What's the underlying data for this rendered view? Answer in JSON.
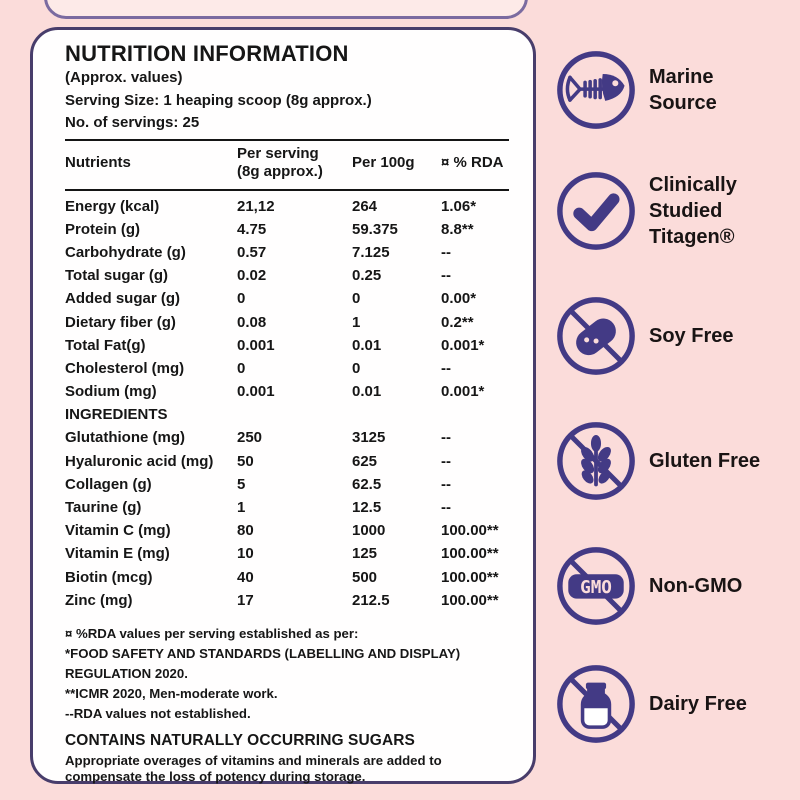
{
  "colors": {
    "background_pink": "#FBDCDA",
    "card_border_purple": "#483D6B",
    "icon_purple": "#433A85",
    "text_black": "#161616"
  },
  "label": {
    "title": "NUTRITION INFORMATION",
    "subtitle": "(Approx. values)",
    "serving_size": "Serving Size: 1 heaping scoop (8g approx.)",
    "servings": "No. of servings: 25",
    "table": {
      "col_nutrients": "Nutrients",
      "col_per_serving_line1": "Per serving",
      "col_per_serving_line2": "(8g approx.)",
      "col_per_100g": "Per 100g",
      "col_rda": "¤ % RDA",
      "rows": [
        {
          "name": "Energy (kcal)",
          "serving": "21,12",
          "per100": "264",
          "rda": "1.06*"
        },
        {
          "name": "Protein (g)",
          "serving": "4.75",
          "per100": "59.375",
          "rda": "8.8**"
        },
        {
          "name": "Carbohydrate (g)",
          "serving": "0.57",
          "per100": "7.125",
          "rda": "--"
        },
        {
          "name": "Total sugar (g)",
          "serving": "0.02",
          "per100": "0.25",
          "rda": "--"
        },
        {
          "name": "Added sugar (g)",
          "serving": "0",
          "per100": "0",
          "rda": "0.00*"
        },
        {
          "name": "Dietary fiber (g)",
          "serving": "0.08",
          "per100": "1",
          "rda": "0.2**"
        },
        {
          "name": "Total Fat(g)",
          "serving": "0.001",
          "per100": "0.01",
          "rda": "0.001*"
        },
        {
          "name": "Cholesterol (mg)",
          "serving": "0",
          "per100": "0",
          "rda": "--"
        },
        {
          "name": "Sodium (mg)",
          "serving": "0.001",
          "per100": "0.01",
          "rda": "0.001*"
        },
        {
          "section": "INGREDIENTS"
        },
        {
          "name": "Glutathione (mg)",
          "serving": "250",
          "per100": "3125",
          "rda": "--"
        },
        {
          "name": "Hyaluronic acid (mg)",
          "serving": "50",
          "per100": "625",
          "rda": "--"
        },
        {
          "name": "Collagen (g)",
          "serving": "5",
          "per100": "62.5",
          "rda": "--"
        },
        {
          "name": "Taurine (g)",
          "serving": "1",
          "per100": "12.5",
          "rda": "--"
        },
        {
          "name": "Vitamin C (mg)",
          "serving": "80",
          "per100": "1000",
          "rda": "100.00**"
        },
        {
          "name": "Vitamin E (mg)",
          "serving": "10",
          "per100": "125",
          "rda": "100.00**"
        },
        {
          "name": "Biotin (mcg)",
          "serving": "40",
          "per100": "500",
          "rda": "100.00**"
        },
        {
          "name": "Zinc (mg)",
          "serving": "17",
          "per100": "212.5",
          "rda": "100.00**"
        }
      ]
    },
    "footnotes": [
      "¤ %RDA values per serving established as per:",
      "*FOOD SAFETY AND STANDARDS (LABELLING AND DISPLAY) REGULATION 2020.",
      "**ICMR 2020, Men-moderate work.",
      "--RDA values not established."
    ],
    "sugars": {
      "heading": "CONTAINS NATURALLY OCCURRING SUGARS",
      "body": "Appropriate overages of vitamins and minerals are added to compensate the loss of potency during storage."
    }
  },
  "badges": [
    {
      "label": "Marine\nSource"
    },
    {
      "label": "Clinically\nStudied\nTitagen®"
    },
    {
      "label": "Soy Free"
    },
    {
      "label": "Gluten Free"
    },
    {
      "label": "Non-GMO",
      "icon_text": "GMO"
    },
    {
      "label": "Dairy Free"
    }
  ]
}
